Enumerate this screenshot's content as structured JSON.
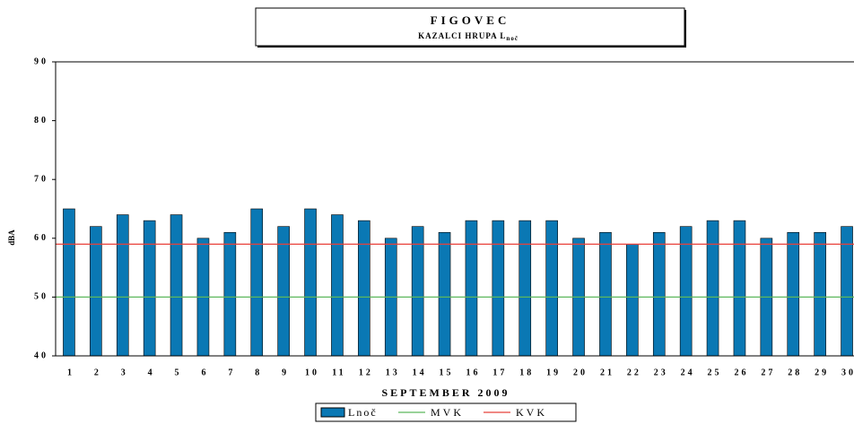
{
  "chart_data": {
    "type": "bar",
    "title": "FIGOVEC",
    "subtitle": "KAZALCI HRUPA L",
    "subtitle_subscript": "noč",
    "x_label": "SEPTEMBER 2009",
    "y_label": "dBA",
    "categories": [
      "1",
      "2",
      "3",
      "4",
      "5",
      "6",
      "7",
      "8",
      "9",
      "10",
      "11",
      "12",
      "13",
      "14",
      "15",
      "16",
      "17",
      "18",
      "19",
      "20",
      "21",
      "22",
      "23",
      "24",
      "25",
      "26",
      "27",
      "28",
      "29",
      "30"
    ],
    "series": [
      {
        "name": "Lnoč",
        "color": "#0a78b4",
        "values": [
          65,
          62,
          64,
          63,
          64,
          60,
          61,
          65,
          62,
          65,
          64,
          63,
          60,
          62,
          61,
          63,
          63,
          63,
          63,
          60,
          61,
          59,
          61,
          62,
          63,
          63,
          60,
          61,
          61,
          62
        ]
      }
    ],
    "hlines": [
      {
        "name": "MVK",
        "value": 50,
        "color": "#5cb85c"
      },
      {
        "name": "KVK",
        "value": 59,
        "color": "#e8413a"
      }
    ],
    "ylim": [
      40,
      90
    ],
    "yticks": [
      40,
      50,
      60,
      70,
      80,
      90
    ]
  }
}
